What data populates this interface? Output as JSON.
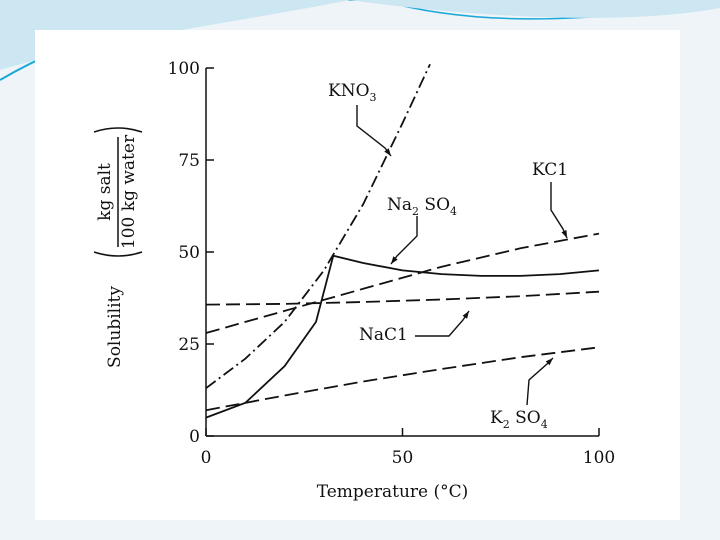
{
  "colors": {
    "ink": "#111111",
    "slide_bg": "#ffffff",
    "deco": "#1aa8d8"
  },
  "chart_data": {
    "type": "line",
    "xlabel": "Temperature (°C)",
    "ylabel": {
      "main": "Solubility",
      "numerator": "kg salt",
      "denominator": "100 kg water"
    },
    "xlim": [
      0,
      100
    ],
    "ylim": [
      0,
      100
    ],
    "xticks": [
      0,
      50,
      100
    ],
    "yticks": [
      0,
      25,
      50,
      75,
      100
    ],
    "grid": false,
    "series": [
      {
        "name": "KNO3",
        "label_main": "KNO",
        "label_sub": "3",
        "style": "dash-dot",
        "points": [
          [
            0,
            13
          ],
          [
            10,
            21
          ],
          [
            20,
            31
          ],
          [
            30,
            45
          ],
          [
            40,
            63
          ],
          [
            50,
            85
          ],
          [
            57,
            101
          ]
        ]
      },
      {
        "name": "Na2SO4",
        "label_pre": "Na",
        "label_sub": "2",
        "label_post": " SO",
        "label_sub2": "4",
        "style": "solid",
        "points": [
          [
            0,
            5
          ],
          [
            10,
            9
          ],
          [
            20,
            19
          ],
          [
            28,
            31
          ],
          [
            32.4,
            49
          ],
          [
            40,
            47
          ],
          [
            50,
            45
          ],
          [
            60,
            44
          ],
          [
            70,
            43.5
          ],
          [
            80,
            43.5
          ],
          [
            90,
            44
          ],
          [
            100,
            45
          ]
        ]
      },
      {
        "name": "KCl",
        "label_main": "KC1",
        "style": "dashed",
        "points": [
          [
            0,
            28
          ],
          [
            20,
            34
          ],
          [
            40,
            40
          ],
          [
            60,
            46
          ],
          [
            80,
            51
          ],
          [
            100,
            55
          ]
        ]
      },
      {
        "name": "NaCl",
        "label_main": "NaC1",
        "style": "dashed",
        "points": [
          [
            0,
            35.7
          ],
          [
            20,
            35.9
          ],
          [
            40,
            36.4
          ],
          [
            60,
            37.1
          ],
          [
            80,
            38
          ],
          [
            100,
            39.2
          ]
        ]
      },
      {
        "name": "K2SO4",
        "label_pre": "K",
        "label_sub": "2",
        "label_post": " SO",
        "label_sub2": "4",
        "style": "dashed",
        "points": [
          [
            0,
            7
          ],
          [
            20,
            11
          ],
          [
            40,
            14.8
          ],
          [
            60,
            18.2
          ],
          [
            80,
            21.4
          ],
          [
            100,
            24.1
          ]
        ]
      }
    ]
  }
}
